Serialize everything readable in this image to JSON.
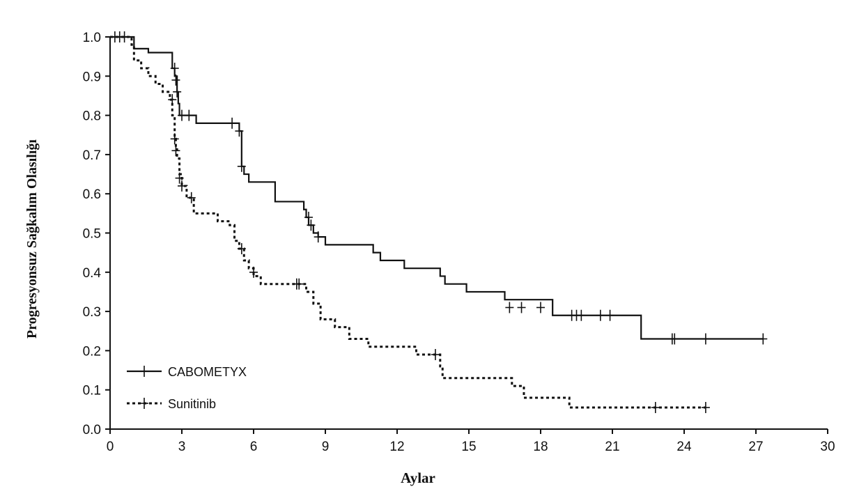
{
  "chart_data": {
    "type": "line",
    "xlabel": "Aylar",
    "ylabel": "Progresyonsuz Sağkalım Olasılığı",
    "xlim": [
      0,
      30
    ],
    "ylim": [
      0,
      1
    ],
    "xticks": [
      0,
      3,
      6,
      9,
      12,
      15,
      18,
      21,
      24,
      27,
      30
    ],
    "yticks": [
      0.0,
      0.1,
      0.2,
      0.3,
      0.4,
      0.5,
      0.6,
      0.7,
      0.8,
      0.9,
      1.0
    ],
    "ytick_labels": [
      "0.0",
      "0.1",
      "0.2",
      "0.3",
      "0.4",
      "0.5",
      "0.6",
      "0.7",
      "0.8",
      "0.9",
      "1.0"
    ],
    "grid": false,
    "legend_position": "bottom-left",
    "series": [
      {
        "name": "CABOMETYX",
        "line_style": "solid",
        "color": "#111111",
        "step_x": [
          0,
          0.8,
          1.0,
          1.6,
          2.6,
          2.7,
          2.8,
          2.85,
          2.9,
          3.0,
          3.6,
          5.3,
          5.4,
          5.5,
          5.6,
          5.8,
          6.9,
          8.1,
          8.2,
          8.3,
          8.5,
          8.7,
          9.0,
          11.0,
          11.3,
          12.3,
          13.8,
          14.0,
          14.3,
          14.9,
          16.5,
          18.5,
          22.2,
          27.3
        ],
        "step_y": [
          1.0,
          1.0,
          0.97,
          0.96,
          0.92,
          0.9,
          0.86,
          0.83,
          0.8,
          0.8,
          0.78,
          0.78,
          0.76,
          0.67,
          0.65,
          0.63,
          0.58,
          0.56,
          0.54,
          0.52,
          0.5,
          0.49,
          0.47,
          0.45,
          0.43,
          0.41,
          0.39,
          0.37,
          0.37,
          0.35,
          0.33,
          0.29,
          0.23,
          0.23
        ],
        "censor_x": [
          0.2,
          0.6,
          2.7,
          2.75,
          2.8,
          3.0,
          3.3,
          5.1,
          5.4,
          5.5,
          8.3,
          8.4,
          8.7,
          16.7,
          17.2,
          18.0,
          19.3,
          19.5,
          19.7,
          20.5,
          20.9,
          23.5,
          23.6,
          24.9,
          27.3
        ],
        "censor_y": [
          1.0,
          1.0,
          0.92,
          0.89,
          0.86,
          0.8,
          0.8,
          0.78,
          0.76,
          0.67,
          0.54,
          0.52,
          0.49,
          0.31,
          0.31,
          0.31,
          0.29,
          0.29,
          0.29,
          0.29,
          0.29,
          0.23,
          0.23,
          0.23,
          0.23
        ]
      },
      {
        "name": "Sunitinib",
        "line_style": "dotted",
        "color": "#111111",
        "step_x": [
          0,
          0.9,
          1.0,
          1.3,
          1.6,
          1.9,
          2.2,
          2.5,
          2.6,
          2.7,
          2.75,
          2.8,
          2.9,
          3.0,
          3.2,
          3.5,
          4.5,
          5.0,
          5.2,
          5.4,
          5.6,
          5.8,
          6.0,
          6.3,
          8.2,
          8.5,
          8.8,
          9.4,
          10.0,
          10.8,
          12.8,
          13.6,
          13.8,
          13.9,
          16.8,
          17.3,
          19.2,
          24.9
        ],
        "step_y": [
          1.0,
          0.98,
          0.94,
          0.92,
          0.9,
          0.88,
          0.86,
          0.84,
          0.8,
          0.74,
          0.72,
          0.69,
          0.65,
          0.62,
          0.59,
          0.55,
          0.53,
          0.52,
          0.48,
          0.46,
          0.43,
          0.41,
          0.39,
          0.37,
          0.35,
          0.32,
          0.28,
          0.26,
          0.23,
          0.21,
          0.19,
          0.19,
          0.16,
          0.13,
          0.11,
          0.08,
          0.055,
          0.055
        ],
        "censor_x": [
          0.4,
          2.6,
          2.7,
          2.75,
          2.9,
          3.0,
          3.4,
          5.5,
          6.0,
          7.8,
          7.9,
          13.6,
          22.8,
          24.9
        ],
        "censor_y": [
          1.0,
          0.84,
          0.74,
          0.71,
          0.64,
          0.62,
          0.59,
          0.46,
          0.4,
          0.37,
          0.37,
          0.19,
          0.055,
          0.055
        ]
      }
    ]
  }
}
